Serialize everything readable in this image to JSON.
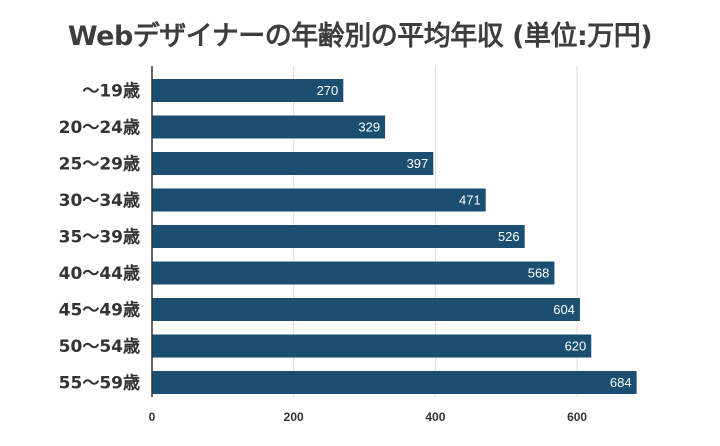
{
  "chart_data": {
    "type": "bar",
    "orientation": "horizontal",
    "title": "Webデザイナーの年齢別の平均年収 (単位:万円)",
    "categories": [
      "～19歳",
      "20～24歳",
      "25～29歳",
      "30～34歳",
      "35～39歳",
      "40～44歳",
      "45～49歳",
      "50～54歳",
      "55～59歳"
    ],
    "values": [
      270,
      329,
      397,
      471,
      526,
      568,
      604,
      620,
      684
    ],
    "xlabel": "",
    "ylabel": "",
    "xlim": [
      0,
      700
    ],
    "xticks": [
      0,
      200,
      400,
      600
    ],
    "grid": true,
    "legend": "none",
    "bar_color": "#1b4f72",
    "grid_color": "#dddddd",
    "axis_color": "#333333"
  }
}
